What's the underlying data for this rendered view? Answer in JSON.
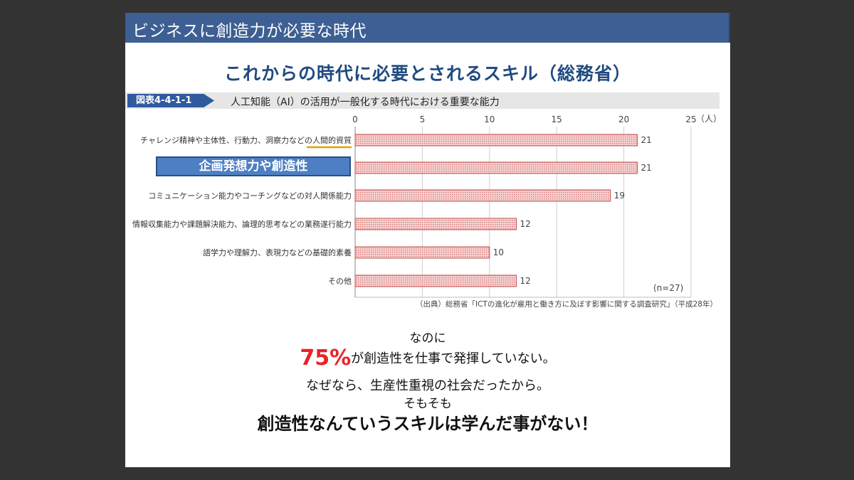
{
  "header": {
    "title": "ビジネスに創造力が必要な時代"
  },
  "main_title": "これからの時代に必要とされるスキル（総務省）",
  "figure": {
    "tag": "図表4-4-1-1",
    "caption": "人工知能（AI）の活用が一般化する時代における重要な能力",
    "source": "（出典）総務省「ICTの進化が雇用と働き方に及ぼす影響に関する調査研究」（平成28年）"
  },
  "highlight": {
    "label": "企画発想力や創造性"
  },
  "colors": {
    "header": "#3d5f93",
    "title": "#1f4a80",
    "bar_fill": "#f4c6c6",
    "bar_border": "#c0504d",
    "accent_red": "#e8232a",
    "underline": "#e5a200"
  },
  "chart_data": {
    "type": "bar",
    "orientation": "horizontal",
    "categories": [
      "チャレンジ精神や主体性、行動力、洞察力などの人間的資質",
      "",
      "コミュニケーション能力やコーチングなどの対人関係能力",
      "情報収集能力や課題解決能力、論理的思考などの業務遂行能力",
      "語学力や理解力、表現力などの基礎的素養",
      "その他"
    ],
    "values": [
      21,
      21,
      19,
      12,
      10,
      12
    ],
    "xlim": [
      0,
      25
    ],
    "ticks": [
      "0",
      "5",
      "10",
      "15",
      "20",
      "25"
    ],
    "unit": "（人）",
    "note": "(n=27)",
    "grid": true
  },
  "message": {
    "line1": "なのに",
    "line2_big": "75%",
    "line2_rest": "が創造性を仕事で発揮していない。",
    "line3": "なぜなら、生産性重視の社会だったから。",
    "line4": "そもそも",
    "line5": "創造性なんていうスキルは学んだ事がない！"
  }
}
